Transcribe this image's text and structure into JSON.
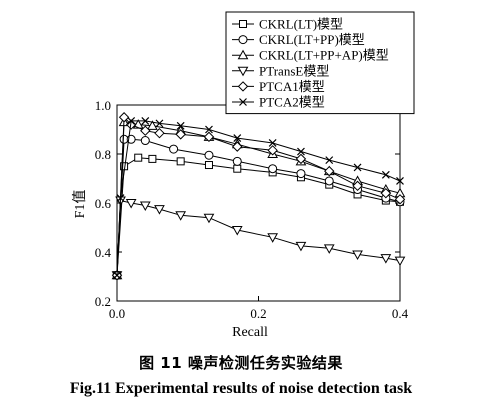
{
  "chart_data": {
    "type": "line",
    "title": "",
    "xlabel": "Recall",
    "ylabel": "F1值",
    "xlim": [
      0,
      0.4
    ],
    "ylim": [
      0.2,
      1.0
    ],
    "xticks": [
      "0.0",
      "0.2",
      "0.4"
    ],
    "yticks": [
      "0.2",
      "0.4",
      "0.6",
      "0.8",
      "1.0"
    ],
    "legend_position": "top-right",
    "grid": false,
    "series": [
      {
        "name": "CKRL(LT)模型",
        "marker": "square",
        "x": [
          0.0,
          0.01,
          0.03,
          0.05,
          0.09,
          0.13,
          0.17,
          0.22,
          0.26,
          0.3,
          0.34,
          0.38,
          0.4
        ],
        "y": [
          0.305,
          0.75,
          0.785,
          0.78,
          0.77,
          0.755,
          0.74,
          0.725,
          0.705,
          0.675,
          0.635,
          0.61,
          0.605
        ]
      },
      {
        "name": "CKRL(LT+PP)模型",
        "marker": "circle",
        "x": [
          0.0,
          0.01,
          0.02,
          0.04,
          0.08,
          0.13,
          0.17,
          0.22,
          0.26,
          0.3,
          0.34,
          0.38,
          0.4
        ],
        "y": [
          0.305,
          0.86,
          0.86,
          0.855,
          0.82,
          0.795,
          0.77,
          0.74,
          0.72,
          0.69,
          0.655,
          0.62,
          0.605
        ]
      },
      {
        "name": "CKRL(LT+PP+AP)模型",
        "marker": "triangle-up",
        "x": [
          0.0,
          0.01,
          0.03,
          0.05,
          0.09,
          0.13,
          0.17,
          0.22,
          0.26,
          0.3,
          0.34,
          0.38,
          0.4
        ],
        "y": [
          0.305,
          0.93,
          0.92,
          0.915,
          0.895,
          0.87,
          0.84,
          0.8,
          0.77,
          0.73,
          0.69,
          0.655,
          0.64
        ]
      },
      {
        "name": "PTransE模型",
        "marker": "triangle-down",
        "x": [
          0.0,
          0.005,
          0.02,
          0.04,
          0.06,
          0.09,
          0.13,
          0.17,
          0.22,
          0.26,
          0.3,
          0.34,
          0.38,
          0.4
        ],
        "y": [
          0.305,
          0.61,
          0.6,
          0.59,
          0.575,
          0.55,
          0.54,
          0.49,
          0.46,
          0.425,
          0.415,
          0.39,
          0.375,
          0.365
        ]
      },
      {
        "name": "PTCA1模型",
        "marker": "diamond",
        "x": [
          0.0,
          0.01,
          0.02,
          0.04,
          0.06,
          0.09,
          0.13,
          0.17,
          0.22,
          0.26,
          0.3,
          0.34,
          0.38,
          0.4
        ],
        "y": [
          0.305,
          0.95,
          0.92,
          0.895,
          0.885,
          0.88,
          0.87,
          0.83,
          0.815,
          0.78,
          0.73,
          0.67,
          0.64,
          0.615
        ]
      },
      {
        "name": "PTCA2模型",
        "marker": "x",
        "x": [
          0.0,
          0.005,
          0.02,
          0.04,
          0.06,
          0.09,
          0.13,
          0.17,
          0.22,
          0.26,
          0.3,
          0.34,
          0.38,
          0.4
        ],
        "y": [
          0.305,
          0.62,
          0.935,
          0.935,
          0.925,
          0.915,
          0.9,
          0.865,
          0.845,
          0.81,
          0.775,
          0.745,
          0.715,
          0.69
        ]
      }
    ]
  },
  "caption": {
    "cn": "图 11   噪声检测任务实验结果",
    "en": "Fig.11   Experimental results of noise detection task"
  }
}
